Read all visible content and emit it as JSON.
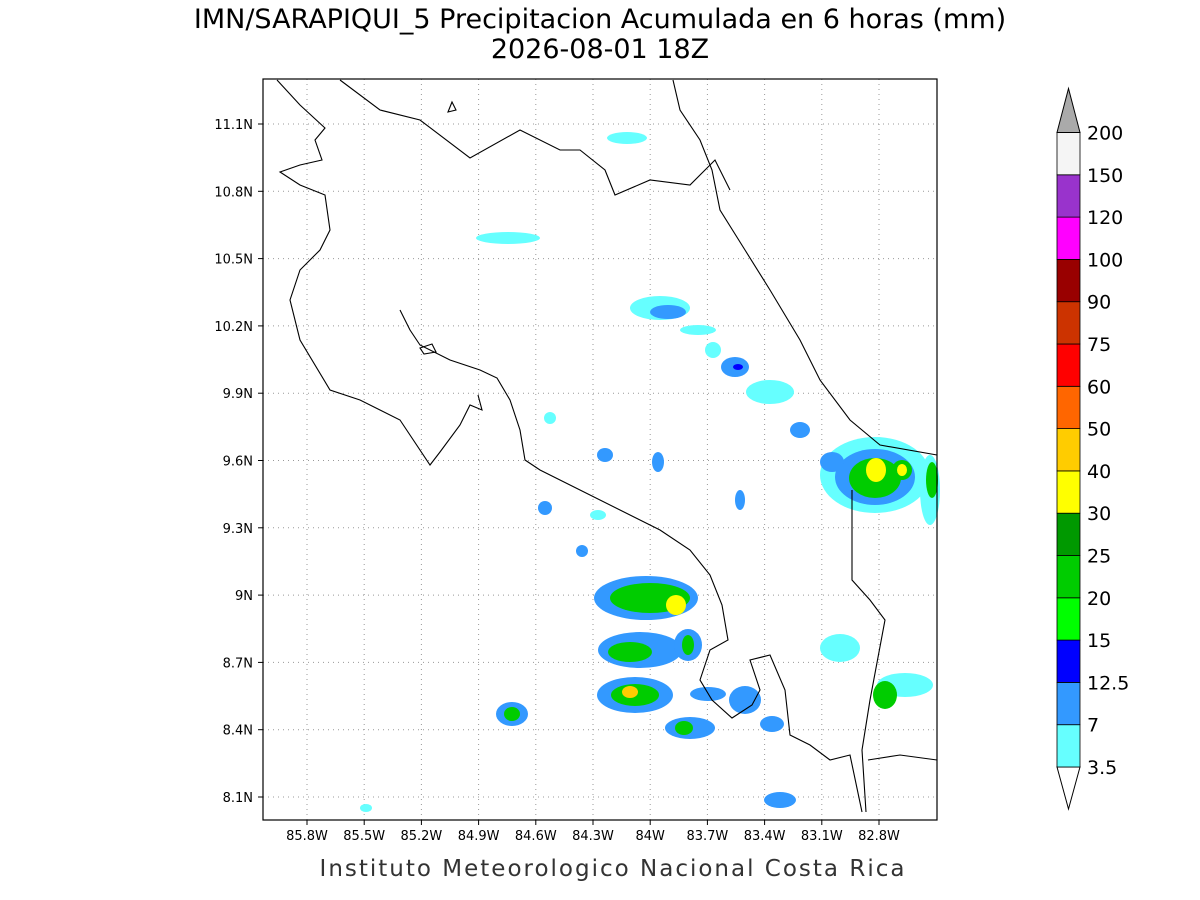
{
  "title": "IMN/SARAPIQUI_5 Precipitacion Acumulada en 6 horas (mm)",
  "subtitle": "2026-08-01 18Z",
  "map": {
    "lon_labels": [
      "85.8W",
      "85.5W",
      "85.2W",
      "84.9W",
      "84.6W",
      "84.3W",
      "84W",
      "83.7W",
      "83.4W",
      "83.1W",
      "82.8W"
    ],
    "lat_labels": [
      "11.1N",
      "10.8N",
      "10.5N",
      "10.2N",
      "9.9N",
      "9.6N",
      "9.3N",
      "9N",
      "8.7N",
      "8.4N",
      "8.1N"
    ]
  },
  "colorbar": {
    "levels": [
      3.5,
      7,
      12.5,
      15,
      20,
      25,
      30,
      40,
      50,
      60,
      75,
      90,
      100,
      120,
      150,
      200
    ],
    "colors": [
      "#ffffff",
      "#66ffff",
      "#3399ff",
      "#0000ff",
      "#00ff00",
      "#00cc00",
      "#009900",
      "#ffff00",
      "#ffcc00",
      "#ff6600",
      "#ff0000",
      "#cc3300",
      "#990000",
      "#ff00ff",
      "#9933cc",
      "#f5f5f5",
      "#aaaaaa"
    ]
  },
  "footer": "Instituto Meteorologico Nacional Costa Rica"
}
